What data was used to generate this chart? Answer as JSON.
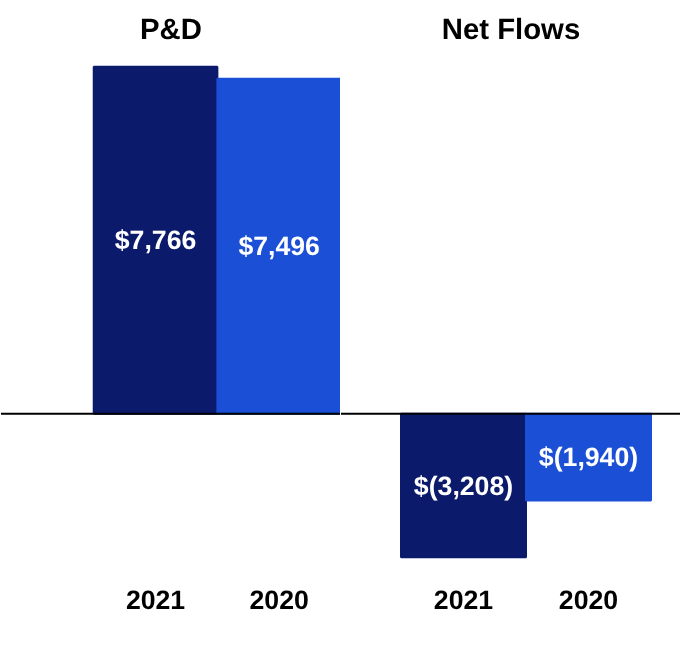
{
  "chart_data": [
    {
      "type": "bar",
      "title": "P&D",
      "categories": [
        "2021",
        "2020"
      ],
      "values": [
        7766,
        7496
      ],
      "colors": [
        "#0b1a6b",
        "#1a4fd6"
      ],
      "value_labels": [
        "$7,766",
        "$7,496"
      ],
      "tick_labels": "x",
      "ref_lines": [
        {
          "axis": "y",
          "value": 0,
          "color": "#000000"
        }
      ]
    },
    {
      "type": "bar",
      "title": "Net Flows",
      "categories": [
        "2021",
        "2020"
      ],
      "values": [
        -3208,
        -1940
      ],
      "colors": [
        "#0b1a6b",
        "#1a4fd6"
      ],
      "value_labels": [
        "$(3,208)",
        "$(1,940)"
      ],
      "tick_labels": "x",
      "ref_lines": [
        {
          "axis": "y",
          "value": 0,
          "color": "#000000"
        }
      ]
    }
  ]
}
